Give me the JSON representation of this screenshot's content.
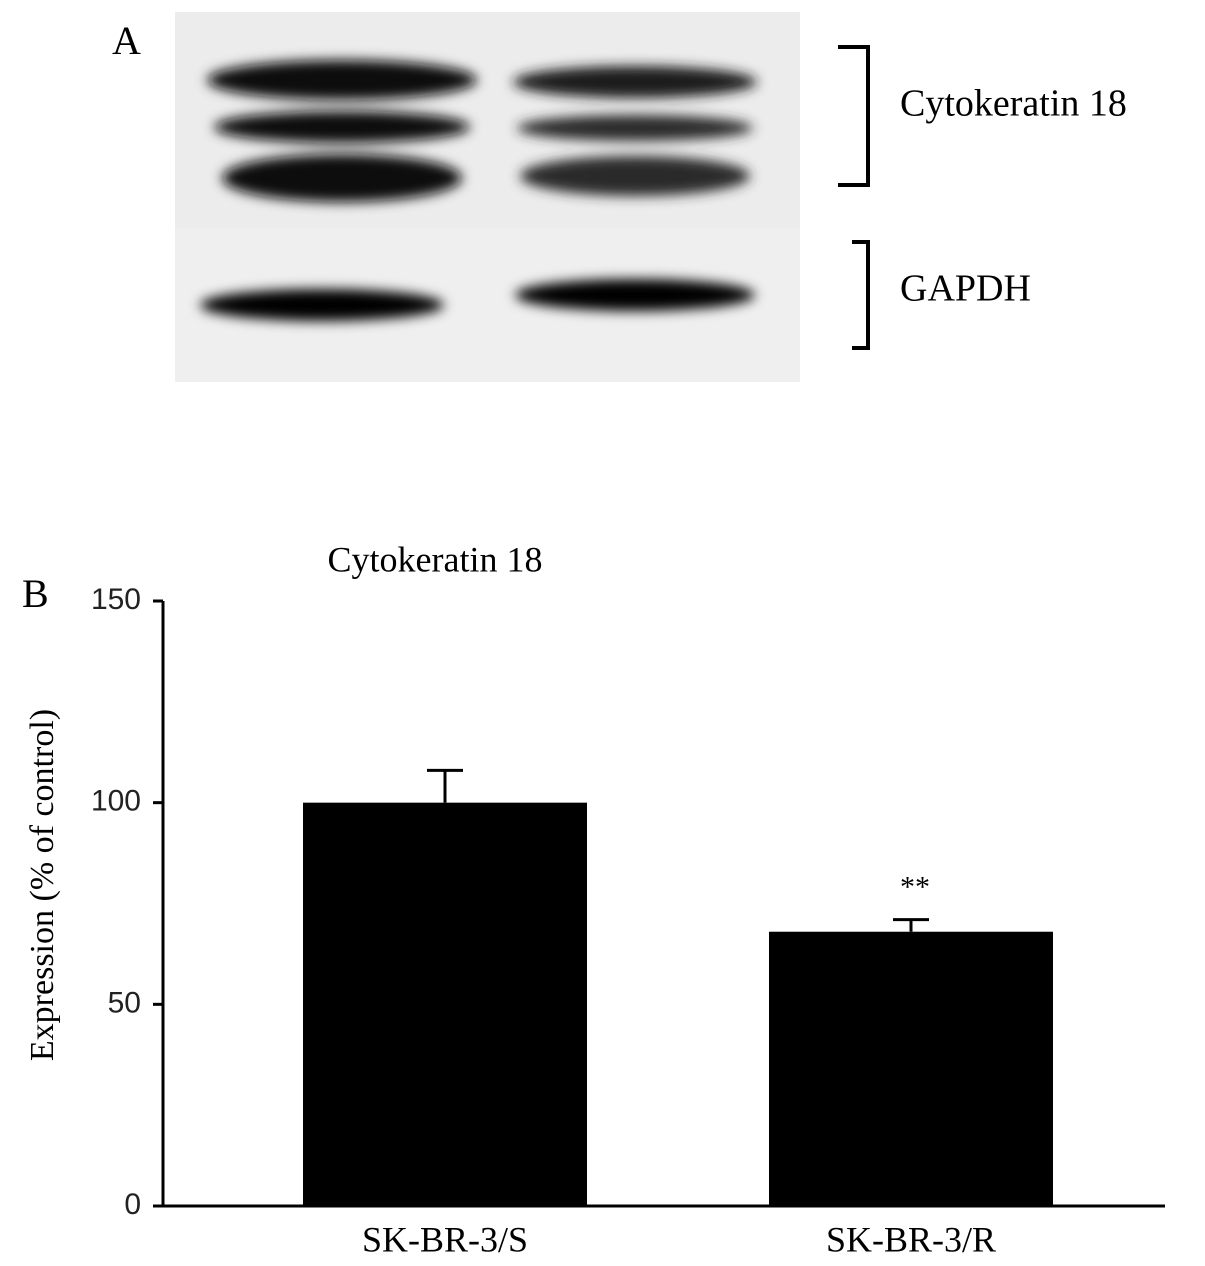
{
  "blot": {
    "label": "A",
    "bands": [
      "Cytokeratin 18",
      "GAPDH"
    ]
  },
  "chart_data": {
    "type": "bar",
    "panel_label": "B",
    "title": "Cytokeratin 18",
    "y_label": "Expression (% of control)",
    "categories": [
      "SK-BR-3/S",
      "SK-BR-3/R"
    ],
    "values": [
      100,
      68
    ],
    "errors": [
      8,
      3
    ],
    "significance": [
      null,
      "**"
    ],
    "color": "#000000",
    "ylim": [
      0,
      150
    ],
    "yticks": [
      0,
      50,
      100,
      150
    ],
    "grid": false
  }
}
